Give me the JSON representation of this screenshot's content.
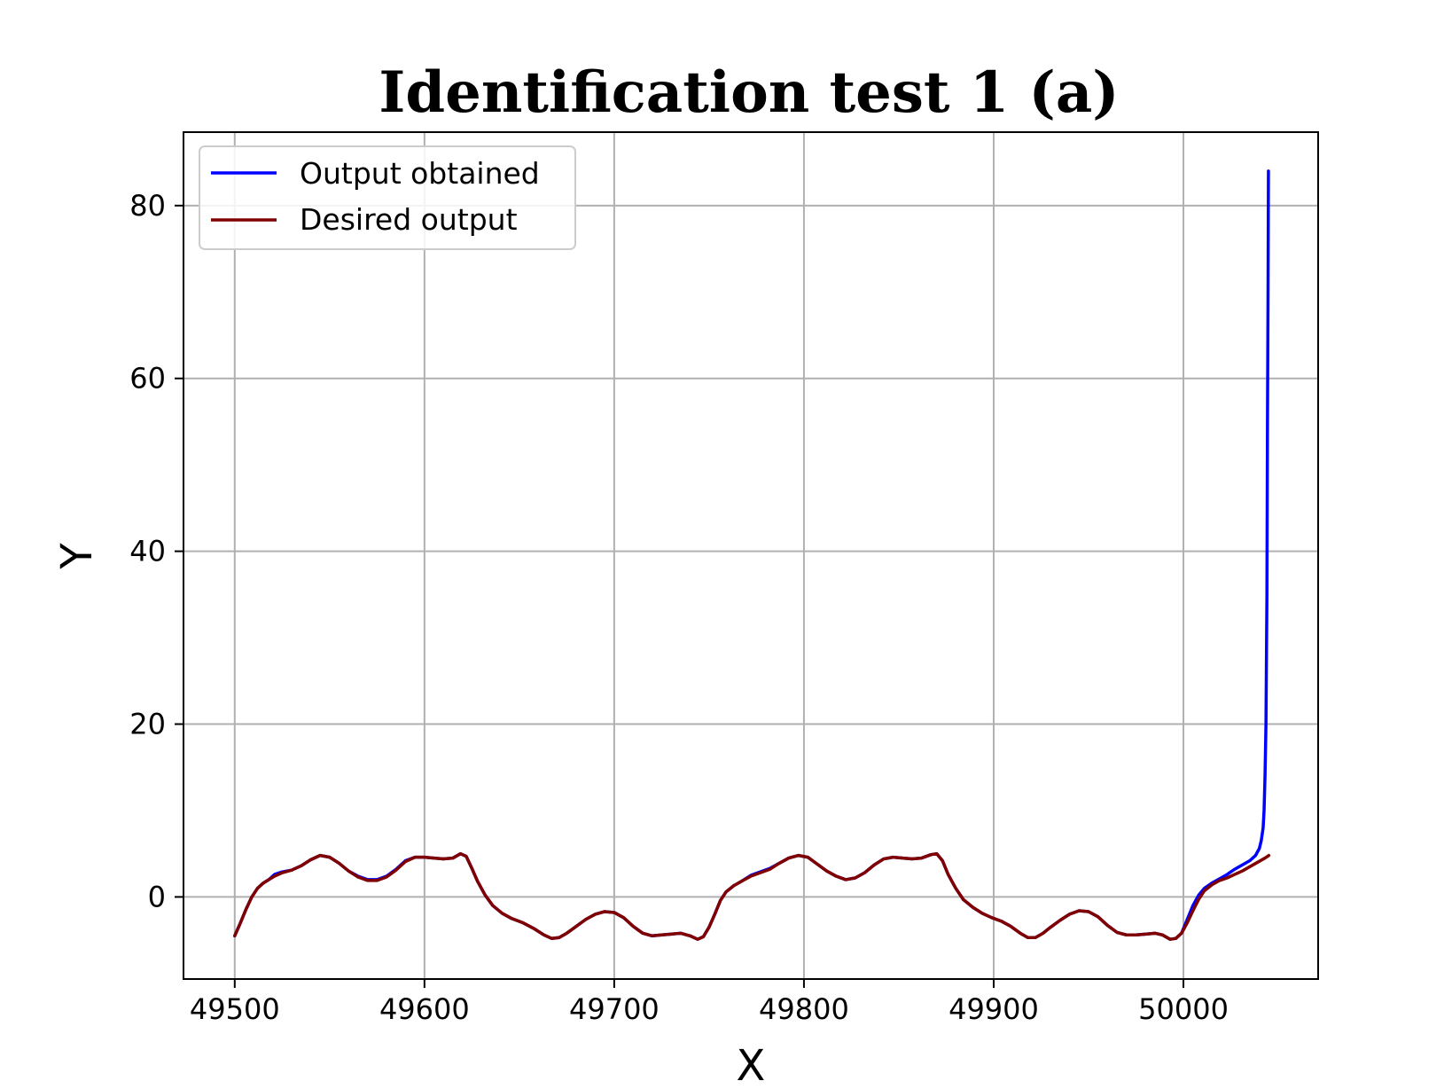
{
  "chart_data": {
    "type": "line",
    "title": "Identification test 1 (a)",
    "xlabel": "X",
    "ylabel": "Y",
    "xlim": [
      49473,
      50071
    ],
    "ylim": [
      -9.5,
      88.5
    ],
    "xticks": [
      49500,
      49600,
      49700,
      49800,
      49900,
      50000
    ],
    "yticks": [
      0,
      20,
      40,
      60,
      80
    ],
    "grid": true,
    "legend_position": "upper left",
    "series": [
      {
        "name": "Output obtained",
        "color": "#0000ff",
        "points": [
          [
            49500,
            -4.5
          ],
          [
            49503,
            -3.0
          ],
          [
            49506,
            -1.4
          ],
          [
            49509,
            0.0
          ],
          [
            49512,
            1.0
          ],
          [
            49515,
            1.6
          ],
          [
            49518,
            2.0
          ],
          [
            49521,
            2.6
          ],
          [
            49525,
            2.9
          ],
          [
            49530,
            3.1
          ],
          [
            49535,
            3.6
          ],
          [
            49540,
            4.3
          ],
          [
            49545,
            4.8
          ],
          [
            49550,
            4.6
          ],
          [
            49555,
            3.9
          ],
          [
            49560,
            3.0
          ],
          [
            49565,
            2.4
          ],
          [
            49570,
            2.0
          ],
          [
            49575,
            2.0
          ],
          [
            49580,
            2.4
          ],
          [
            49585,
            3.2
          ],
          [
            49590,
            4.2
          ],
          [
            49595,
            4.6
          ],
          [
            49600,
            4.6
          ],
          [
            49605,
            4.5
          ],
          [
            49610,
            4.4
          ],
          [
            49615,
            4.5
          ],
          [
            49619,
            5.0
          ],
          [
            49622,
            4.7
          ],
          [
            49625,
            3.3
          ],
          [
            49628,
            1.8
          ],
          [
            49632,
            0.2
          ],
          [
            49636,
            -1.0
          ],
          [
            49641,
            -1.9
          ],
          [
            49646,
            -2.5
          ],
          [
            49652,
            -3.0
          ],
          [
            49658,
            -3.7
          ],
          [
            49663,
            -4.4
          ],
          [
            49667,
            -4.8
          ],
          [
            49671,
            -4.7
          ],
          [
            49675,
            -4.2
          ],
          [
            49680,
            -3.4
          ],
          [
            49685,
            -2.6
          ],
          [
            49690,
            -2.0
          ],
          [
            49695,
            -1.7
          ],
          [
            49700,
            -1.8
          ],
          [
            49705,
            -2.4
          ],
          [
            49710,
            -3.4
          ],
          [
            49715,
            -4.2
          ],
          [
            49720,
            -4.5
          ],
          [
            49725,
            -4.4
          ],
          [
            49730,
            -4.3
          ],
          [
            49735,
            -4.2
          ],
          [
            49740,
            -4.5
          ],
          [
            49744,
            -4.9
          ],
          [
            49747,
            -4.6
          ],
          [
            49750,
            -3.5
          ],
          [
            49753,
            -2.0
          ],
          [
            49756,
            -0.4
          ],
          [
            49759,
            0.6
          ],
          [
            49763,
            1.3
          ],
          [
            49767,
            1.8
          ],
          [
            49772,
            2.5
          ],
          [
            49777,
            2.9
          ],
          [
            49782,
            3.3
          ],
          [
            49787,
            3.9
          ],
          [
            49792,
            4.5
          ],
          [
            49797,
            4.8
          ],
          [
            49802,
            4.6
          ],
          [
            49807,
            3.8
          ],
          [
            49812,
            3.0
          ],
          [
            49817,
            2.4
          ],
          [
            49822,
            2.0
          ],
          [
            49827,
            2.2
          ],
          [
            49832,
            2.8
          ],
          [
            49837,
            3.7
          ],
          [
            49842,
            4.4
          ],
          [
            49847,
            4.6
          ],
          [
            49852,
            4.5
          ],
          [
            49857,
            4.4
          ],
          [
            49862,
            4.5
          ],
          [
            49867,
            4.9
          ],
          [
            49870,
            5.0
          ],
          [
            49873,
            4.2
          ],
          [
            49876,
            2.6
          ],
          [
            49880,
            1.0
          ],
          [
            49884,
            -0.3
          ],
          [
            49889,
            -1.2
          ],
          [
            49894,
            -1.9
          ],
          [
            49899,
            -2.4
          ],
          [
            49904,
            -2.8
          ],
          [
            49909,
            -3.4
          ],
          [
            49914,
            -4.2
          ],
          [
            49918,
            -4.7
          ],
          [
            49922,
            -4.7
          ],
          [
            49926,
            -4.2
          ],
          [
            49930,
            -3.5
          ],
          [
            49935,
            -2.7
          ],
          [
            49940,
            -2.0
          ],
          [
            49945,
            -1.6
          ],
          [
            49950,
            -1.7
          ],
          [
            49955,
            -2.3
          ],
          [
            49960,
            -3.3
          ],
          [
            49965,
            -4.1
          ],
          [
            49970,
            -4.4
          ],
          [
            49975,
            -4.4
          ],
          [
            49980,
            -4.3
          ],
          [
            49985,
            -4.2
          ],
          [
            49989,
            -4.4
          ],
          [
            49993,
            -4.9
          ],
          [
            49996,
            -4.8
          ],
          [
            49999,
            -4.2
          ],
          [
            50002,
            -2.6
          ],
          [
            50005,
            -1.0
          ],
          [
            50008,
            0.2
          ],
          [
            50011,
            1.0
          ],
          [
            50015,
            1.6
          ],
          [
            50019,
            2.1
          ],
          [
            50023,
            2.6
          ],
          [
            50027,
            3.2
          ],
          [
            50031,
            3.7
          ],
          [
            50035,
            4.2
          ],
          [
            50038,
            4.8
          ],
          [
            50040,
            5.6
          ],
          [
            50041,
            6.5
          ],
          [
            50042,
            8.0
          ],
          [
            50042.5,
            10.0
          ],
          [
            50043,
            14.0
          ],
          [
            50043.5,
            20.0
          ],
          [
            50044,
            35.0
          ],
          [
            50044.3,
            55.0
          ],
          [
            50044.6,
            70.0
          ],
          [
            50044.8,
            84.0
          ]
        ]
      },
      {
        "name": "Desired output",
        "color": "#800000",
        "points": [
          [
            49500,
            -4.5
          ],
          [
            49503,
            -3.0
          ],
          [
            49506,
            -1.4
          ],
          [
            49509,
            0.0
          ],
          [
            49512,
            1.0
          ],
          [
            49515,
            1.6
          ],
          [
            49518,
            2.0
          ],
          [
            49521,
            2.4
          ],
          [
            49525,
            2.8
          ],
          [
            49530,
            3.1
          ],
          [
            49535,
            3.6
          ],
          [
            49540,
            4.3
          ],
          [
            49545,
            4.8
          ],
          [
            49550,
            4.6
          ],
          [
            49555,
            3.9
          ],
          [
            49560,
            3.0
          ],
          [
            49565,
            2.3
          ],
          [
            49570,
            1.9
          ],
          [
            49575,
            1.9
          ],
          [
            49580,
            2.3
          ],
          [
            49585,
            3.1
          ],
          [
            49590,
            4.1
          ],
          [
            49595,
            4.6
          ],
          [
            49600,
            4.6
          ],
          [
            49605,
            4.5
          ],
          [
            49610,
            4.4
          ],
          [
            49615,
            4.5
          ],
          [
            49619,
            5.0
          ],
          [
            49622,
            4.7
          ],
          [
            49625,
            3.3
          ],
          [
            49628,
            1.8
          ],
          [
            49632,
            0.2
          ],
          [
            49636,
            -1.0
          ],
          [
            49641,
            -1.9
          ],
          [
            49646,
            -2.5
          ],
          [
            49652,
            -3.0
          ],
          [
            49658,
            -3.7
          ],
          [
            49663,
            -4.4
          ],
          [
            49667,
            -4.8
          ],
          [
            49671,
            -4.7
          ],
          [
            49675,
            -4.2
          ],
          [
            49680,
            -3.4
          ],
          [
            49685,
            -2.6
          ],
          [
            49690,
            -2.0
          ],
          [
            49695,
            -1.7
          ],
          [
            49700,
            -1.8
          ],
          [
            49705,
            -2.4
          ],
          [
            49710,
            -3.4
          ],
          [
            49715,
            -4.2
          ],
          [
            49720,
            -4.5
          ],
          [
            49725,
            -4.4
          ],
          [
            49730,
            -4.3
          ],
          [
            49735,
            -4.2
          ],
          [
            49740,
            -4.5
          ],
          [
            49744,
            -4.9
          ],
          [
            49747,
            -4.6
          ],
          [
            49750,
            -3.5
          ],
          [
            49753,
            -2.0
          ],
          [
            49756,
            -0.4
          ],
          [
            49759,
            0.6
          ],
          [
            49763,
            1.3
          ],
          [
            49767,
            1.8
          ],
          [
            49772,
            2.4
          ],
          [
            49777,
            2.8
          ],
          [
            49782,
            3.2
          ],
          [
            49787,
            3.9
          ],
          [
            49792,
            4.5
          ],
          [
            49797,
            4.8
          ],
          [
            49802,
            4.6
          ],
          [
            49807,
            3.8
          ],
          [
            49812,
            3.0
          ],
          [
            49817,
            2.4
          ],
          [
            49822,
            2.0
          ],
          [
            49827,
            2.2
          ],
          [
            49832,
            2.8
          ],
          [
            49837,
            3.7
          ],
          [
            49842,
            4.4
          ],
          [
            49847,
            4.6
          ],
          [
            49852,
            4.5
          ],
          [
            49857,
            4.4
          ],
          [
            49862,
            4.5
          ],
          [
            49867,
            4.9
          ],
          [
            49870,
            5.0
          ],
          [
            49873,
            4.2
          ],
          [
            49876,
            2.6
          ],
          [
            49880,
            1.0
          ],
          [
            49884,
            -0.3
          ],
          [
            49889,
            -1.2
          ],
          [
            49894,
            -1.9
          ],
          [
            49899,
            -2.4
          ],
          [
            49904,
            -2.8
          ],
          [
            49909,
            -3.4
          ],
          [
            49914,
            -4.2
          ],
          [
            49918,
            -4.7
          ],
          [
            49922,
            -4.7
          ],
          [
            49926,
            -4.2
          ],
          [
            49930,
            -3.5
          ],
          [
            49935,
            -2.7
          ],
          [
            49940,
            -2.0
          ],
          [
            49945,
            -1.6
          ],
          [
            49950,
            -1.7
          ],
          [
            49955,
            -2.3
          ],
          [
            49960,
            -3.3
          ],
          [
            49965,
            -4.1
          ],
          [
            49970,
            -4.4
          ],
          [
            49975,
            -4.4
          ],
          [
            49980,
            -4.3
          ],
          [
            49985,
            -4.2
          ],
          [
            49989,
            -4.4
          ],
          [
            49993,
            -4.9
          ],
          [
            49996,
            -4.8
          ],
          [
            49999,
            -4.2
          ],
          [
            50002,
            -3.0
          ],
          [
            50005,
            -1.6
          ],
          [
            50008,
            -0.3
          ],
          [
            50011,
            0.7
          ],
          [
            50015,
            1.4
          ],
          [
            50019,
            1.9
          ],
          [
            50023,
            2.2
          ],
          [
            50027,
            2.6
          ],
          [
            50031,
            3.0
          ],
          [
            50035,
            3.5
          ],
          [
            50039,
            4.0
          ],
          [
            50043,
            4.5
          ],
          [
            50045,
            4.8
          ]
        ]
      }
    ]
  }
}
